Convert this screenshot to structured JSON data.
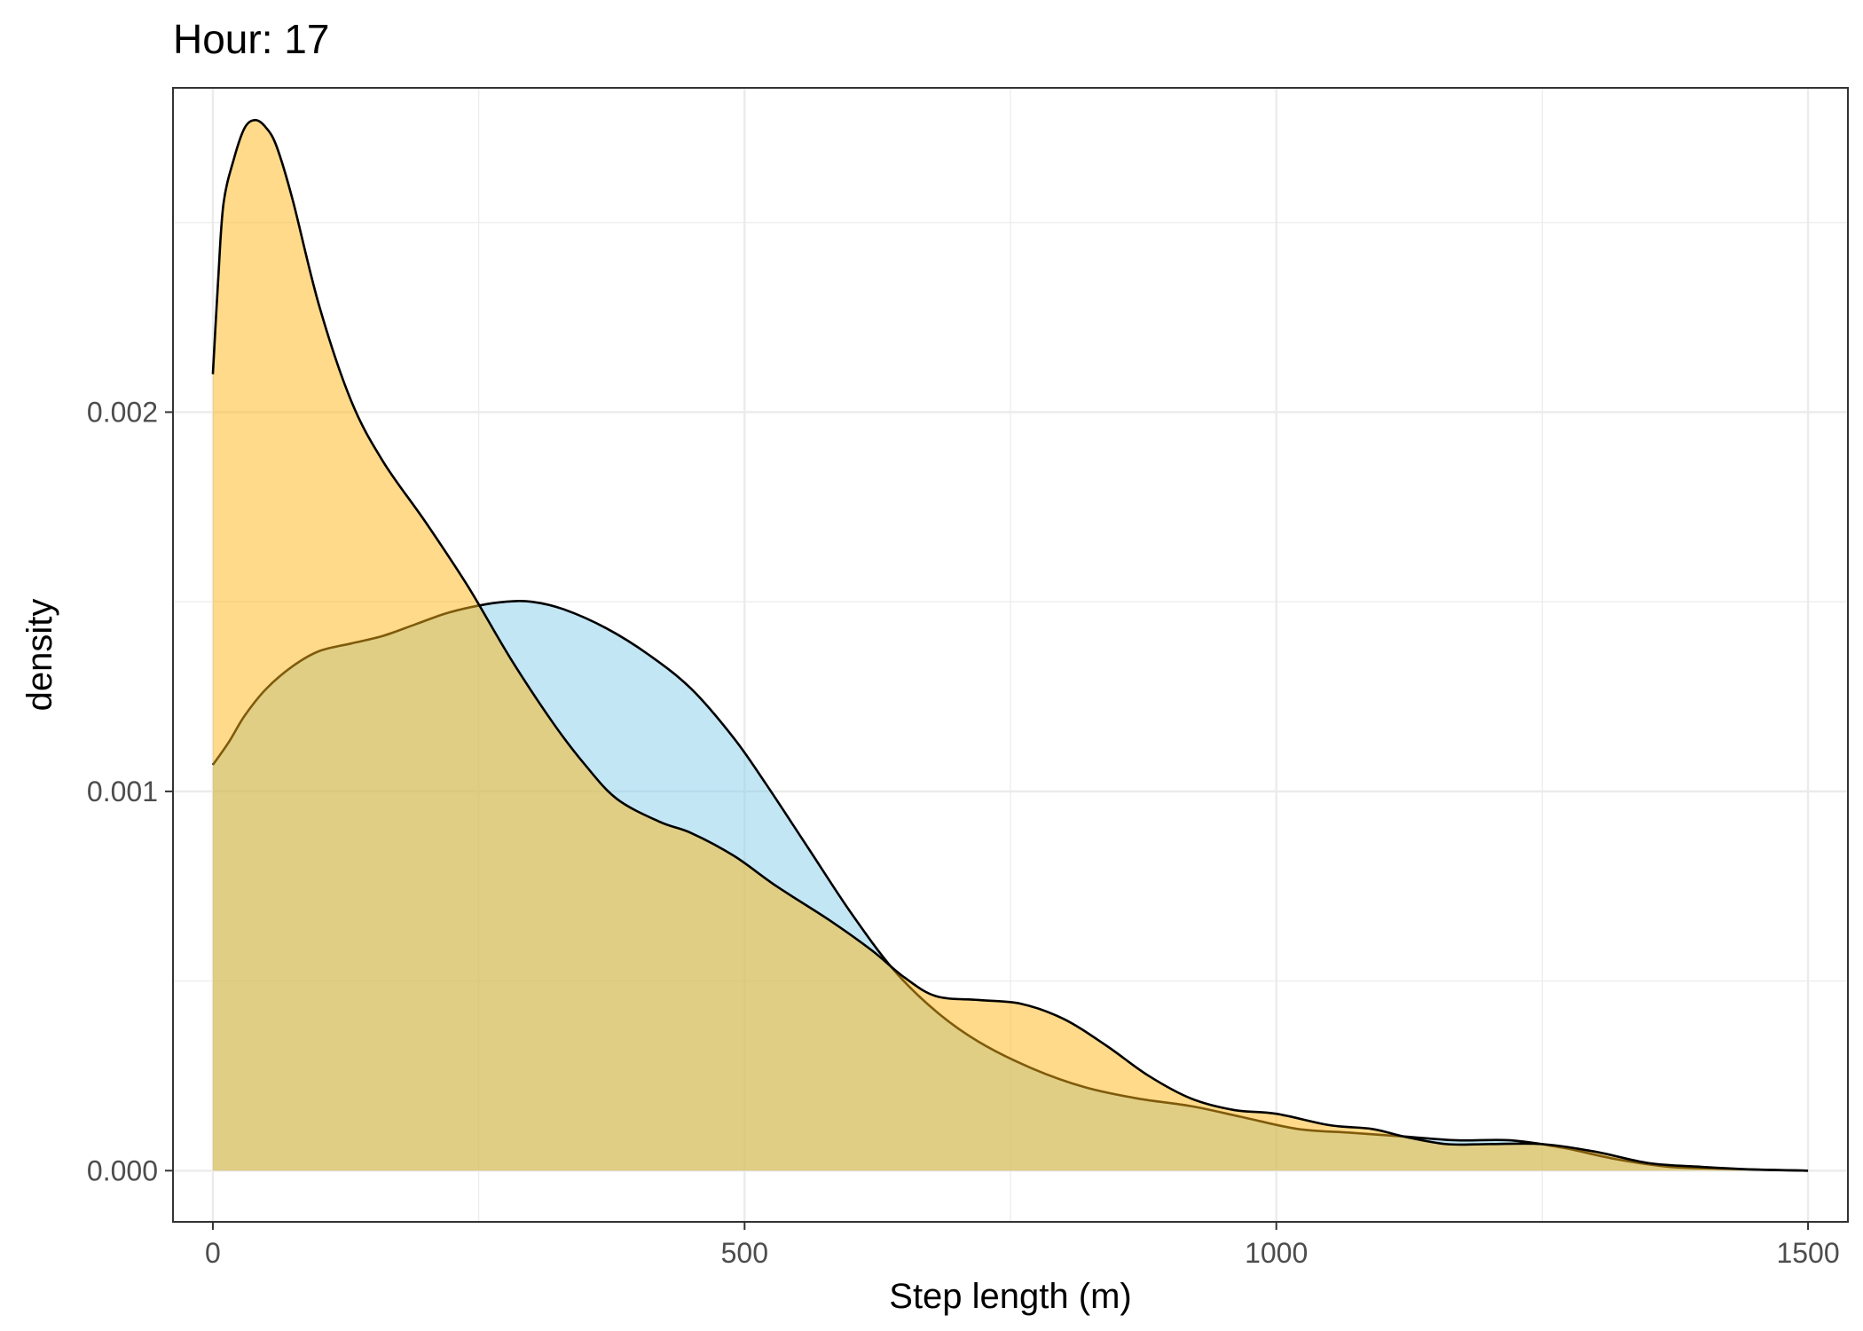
{
  "chart_data": {
    "type": "area",
    "title": "Hour: 17",
    "xlabel": "Step length (m)",
    "ylabel": "density",
    "xlim": [
      -37.5,
      1537.5
    ],
    "ylim": [
      -0.000135,
      0.002855
    ],
    "x_ticks": [
      0,
      500,
      1000,
      1500
    ],
    "x_tick_labels": [
      "0",
      "500",
      "1000",
      "1500"
    ],
    "x_minor_ticks": [
      250,
      750,
      1250
    ],
    "y_ticks": [
      0,
      0.001,
      0.002
    ],
    "y_tick_labels": [
      "0.000",
      "0.001",
      "0.002"
    ],
    "y_minor_ticks": [
      0.0005,
      0.0015,
      0.0025
    ],
    "grid": true,
    "legend": "none",
    "series": [
      {
        "fill": "#87ceeb",
        "fill_opacity": 0.5,
        "values": [
          [
            0,
            0.00107
          ],
          [
            15,
            0.00113
          ],
          [
            30,
            0.0012
          ],
          [
            50,
            0.00127
          ],
          [
            75,
            0.00133
          ],
          [
            100,
            0.00137
          ],
          [
            130,
            0.00139
          ],
          [
            160,
            0.00141
          ],
          [
            190,
            0.00144
          ],
          [
            220,
            0.00147
          ],
          [
            250,
            0.00149
          ],
          [
            275,
            0.0015
          ],
          [
            300,
            0.0015
          ],
          [
            330,
            0.00148
          ],
          [
            370,
            0.00143
          ],
          [
            410,
            0.00136
          ],
          [
            450,
            0.00127
          ],
          [
            490,
            0.00114
          ],
          [
            520,
            0.00102
          ],
          [
            560,
            0.00085
          ],
          [
            600,
            0.00068
          ],
          [
            640,
            0.00053
          ],
          [
            680,
            0.00042
          ],
          [
            720,
            0.00034
          ],
          [
            770,
            0.00027
          ],
          [
            820,
            0.00022
          ],
          [
            870,
            0.00019
          ],
          [
            920,
            0.00017
          ],
          [
            970,
            0.00014
          ],
          [
            1020,
            0.00011
          ],
          [
            1070,
            0.0001
          ],
          [
            1120,
            9e-05
          ],
          [
            1170,
            8e-05
          ],
          [
            1220,
            8e-05
          ],
          [
            1270,
            6e-05
          ],
          [
            1320,
            3e-05
          ],
          [
            1370,
            1e-05
          ],
          [
            1420,
            5e-06
          ],
          [
            1500,
            0
          ]
        ]
      },
      {
        "fill": "#fdb515",
        "fill_opacity": 0.5,
        "values": [
          [
            0,
            0.0021
          ],
          [
            5,
            0.00235
          ],
          [
            10,
            0.00255
          ],
          [
            20,
            0.00267
          ],
          [
            30,
            0.00275
          ],
          [
            40,
            0.00277
          ],
          [
            50,
            0.00275
          ],
          [
            60,
            0.0027
          ],
          [
            75,
            0.00256
          ],
          [
            100,
            0.00228
          ],
          [
            130,
            0.00203
          ],
          [
            160,
            0.00187
          ],
          [
            200,
            0.00171
          ],
          [
            240,
            0.00154
          ],
          [
            280,
            0.00135
          ],
          [
            320,
            0.00118
          ],
          [
            350,
            0.00107
          ],
          [
            380,
            0.00098
          ],
          [
            420,
            0.00092
          ],
          [
            450,
            0.00089
          ],
          [
            490,
            0.00083
          ],
          [
            530,
            0.00075
          ],
          [
            580,
            0.00066
          ],
          [
            620,
            0.00058
          ],
          [
            650,
            0.00051
          ],
          [
            680,
            0.00046
          ],
          [
            720,
            0.00045
          ],
          [
            760,
            0.00044
          ],
          [
            800,
            0.0004
          ],
          [
            840,
            0.00033
          ],
          [
            880,
            0.00025
          ],
          [
            920,
            0.00019
          ],
          [
            960,
            0.00016
          ],
          [
            1000,
            0.00015
          ],
          [
            1050,
            0.00012
          ],
          [
            1090,
            0.00011
          ],
          [
            1120,
            9e-05
          ],
          [
            1160,
            7e-05
          ],
          [
            1200,
            7e-05
          ],
          [
            1250,
            7e-05
          ],
          [
            1300,
            5e-05
          ],
          [
            1350,
            2e-05
          ],
          [
            1400,
            1e-05
          ],
          [
            1450,
            3e-06
          ],
          [
            1500,
            0
          ]
        ]
      }
    ]
  }
}
